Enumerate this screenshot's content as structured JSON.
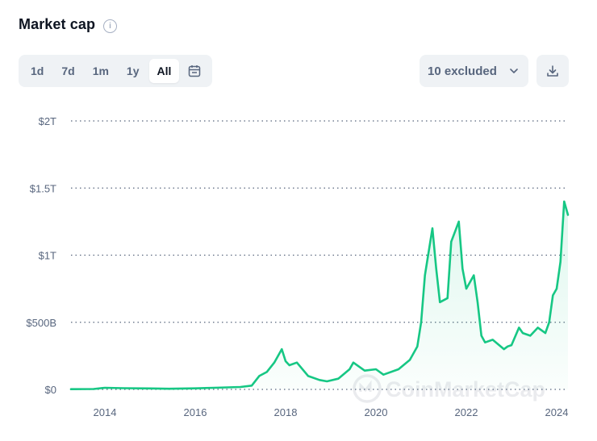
{
  "header": {
    "title": "Market cap",
    "info_icon": "info-icon"
  },
  "toolbar": {
    "ranges": [
      "1d",
      "7d",
      "1m",
      "1y",
      "All"
    ],
    "active_range": "All",
    "calendar_icon": "calendar-icon",
    "excluded_label": "10 excluded",
    "chevron_icon": "chevron-down-icon",
    "download_icon": "download-icon"
  },
  "watermark": "CoinMarketCap",
  "colors": {
    "line": "#16c784",
    "fill": "#16c784",
    "grid": "#58667e",
    "text": "#58667e"
  },
  "chart_data": {
    "type": "area",
    "title": "Market cap",
    "ylim": [
      0,
      2000
    ],
    "y_unit": "USD billions",
    "y_ticks": [
      0,
      500,
      1000,
      1500,
      2000
    ],
    "y_tick_labels": [
      "$0",
      "$500B",
      "$1T",
      "$1.5T",
      "$2T"
    ],
    "x_ticks": [
      2014,
      2016,
      2018,
      2020,
      2022,
      2024
    ],
    "x_tick_labels": [
      "2014",
      "2016",
      "2018",
      "2020",
      "2022",
      "2024"
    ],
    "xlim": [
      "2013-04",
      "2024-04"
    ],
    "grid": "horizontal dotted",
    "series": [
      {
        "x": [
          "2013-04",
          "2013-10",
          "2014-01",
          "2014-06",
          "2015-01",
          "2015-06",
          "2016-01",
          "2016-06",
          "2017-01",
          "2017-04",
          "2017-06",
          "2017-08",
          "2017-10",
          "2017-12",
          "2018-01",
          "2018-02",
          "2018-04",
          "2018-07",
          "2018-10",
          "2018-12",
          "2019-03",
          "2019-06",
          "2019-07",
          "2019-10",
          "2020-01",
          "2020-03",
          "2020-07",
          "2020-10",
          "2020-12",
          "2021-01",
          "2021-02",
          "2021-04",
          "2021-05",
          "2021-06",
          "2021-08",
          "2021-09",
          "2021-11",
          "2021-12",
          "2022-01",
          "2022-03",
          "2022-04",
          "2022-05",
          "2022-06",
          "2022-08",
          "2022-11",
          "2022-12",
          "2023-01",
          "2023-03",
          "2023-04",
          "2023-06",
          "2023-08",
          "2023-10",
          "2023-11",
          "2023-12",
          "2024-01",
          "2024-02",
          "2024-03",
          "2024-04"
        ],
        "y": [
          2,
          3,
          12,
          9,
          7,
          5,
          8,
          12,
          18,
          28,
          100,
          130,
          200,
          300,
          210,
          180,
          200,
          100,
          70,
          60,
          80,
          150,
          200,
          140,
          150,
          110,
          150,
          220,
          320,
          500,
          850,
          1200,
          900,
          650,
          680,
          1100,
          1250,
          900,
          750,
          850,
          650,
          400,
          350,
          370,
          300,
          320,
          330,
          460,
          420,
          400,
          460,
          420,
          500,
          700,
          750,
          950,
          1400,
          1300
        ]
      }
    ]
  }
}
